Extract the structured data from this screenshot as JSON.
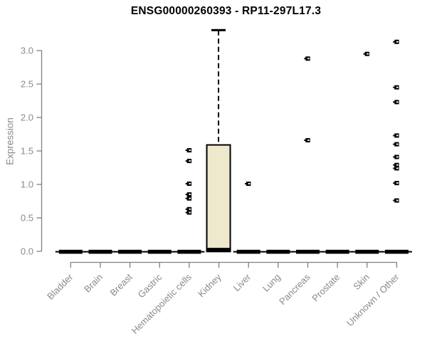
{
  "chart_data": {
    "type": "boxplot",
    "title": "ENSG00000260393 - RP11-297L17.3",
    "xlabel": "",
    "ylabel": "Expression",
    "ylim": [
      0,
      3.42
    ],
    "yticks": [
      0,
      0.5,
      1,
      1.5,
      2,
      2.5,
      3
    ],
    "grid": false,
    "categories": [
      "Bladder",
      "Brain",
      "Breast",
      "Gastric",
      "Hematopoietic cells",
      "Kidney",
      "Liver",
      "Lung",
      "Pancreas",
      "Prostate",
      "Skin",
      "Unknown / Other"
    ],
    "series": [
      {
        "category": "Bladder",
        "q1": 0,
        "median": 0,
        "q3": 0,
        "whisker_low": 0,
        "whisker_high": 0,
        "outliers": []
      },
      {
        "category": "Brain",
        "q1": 0,
        "median": 0,
        "q3": 0,
        "whisker_low": 0,
        "whisker_high": 0,
        "outliers": []
      },
      {
        "category": "Breast",
        "q1": 0,
        "median": 0,
        "q3": 0,
        "whisker_low": 0,
        "whisker_high": 0,
        "outliers": []
      },
      {
        "category": "Gastric",
        "q1": 0,
        "median": 0,
        "q3": 0,
        "whisker_low": 0,
        "whisker_high": 0,
        "outliers": []
      },
      {
        "category": "Hematopoietic cells",
        "q1": 0,
        "median": 0,
        "q3": 0,
        "whisker_low": 0,
        "whisker_high": 0,
        "outliers": [
          1.51,
          1.35,
          1.01,
          0.85,
          0.79,
          0.63,
          0.58
        ]
      },
      {
        "category": "Kidney",
        "q1": 0.02,
        "median": 0.02,
        "q3": 1.59,
        "whisker_low": 0,
        "whisker_high": 3.3,
        "outliers": []
      },
      {
        "category": "Liver",
        "q1": 0,
        "median": 0,
        "q3": 0,
        "whisker_low": 0,
        "whisker_high": 0,
        "outliers": [
          1.01
        ]
      },
      {
        "category": "Lung",
        "q1": 0,
        "median": 0,
        "q3": 0,
        "whisker_low": 0,
        "whisker_high": 0,
        "outliers": []
      },
      {
        "category": "Pancreas",
        "q1": 0,
        "median": 0,
        "q3": 0,
        "whisker_low": 0,
        "whisker_high": 0,
        "outliers": [
          2.88,
          1.66
        ]
      },
      {
        "category": "Prostate",
        "q1": 0,
        "median": 0,
        "q3": 0,
        "whisker_low": 0,
        "whisker_high": 0,
        "outliers": []
      },
      {
        "category": "Skin",
        "q1": 0,
        "median": 0,
        "q3": 0,
        "whisker_low": 0,
        "whisker_high": 0,
        "outliers": [
          2.95
        ]
      },
      {
        "category": "Unknown / Other",
        "q1": 0,
        "median": 0,
        "q3": 0,
        "whisker_low": 0,
        "whisker_high": 0,
        "outliers": [
          3.13,
          2.45,
          2.23,
          1.73,
          1.6,
          1.41,
          1.29,
          1.24,
          1.02,
          0.76
        ]
      }
    ],
    "colors": {
      "box_fill": "#EEE8CD",
      "box_stroke": "#000000",
      "median": "#000000",
      "outlier": "#000000",
      "axis": "#7f7f7f",
      "tick_label": "#8a8a8a",
      "title": "#000000",
      "background": "#ffffff"
    }
  }
}
